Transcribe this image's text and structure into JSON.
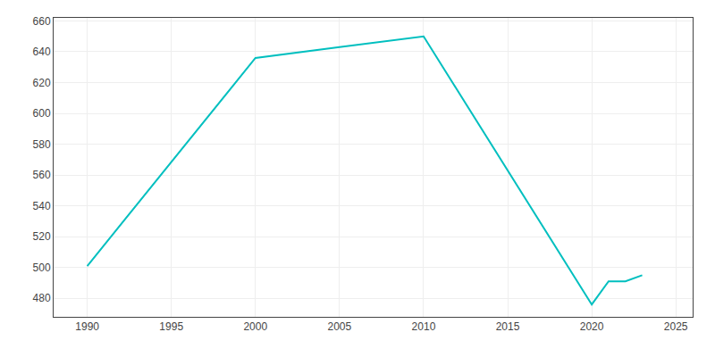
{
  "chart_data": {
    "type": "line",
    "x": [
      1990,
      2000,
      2005,
      2010,
      2020,
      2021,
      2022,
      2023
    ],
    "values": [
      501,
      636,
      643,
      650,
      476,
      491,
      491,
      495
    ],
    "color": "#00BFBF",
    "xlim": [
      1988,
      2026
    ],
    "ylim": [
      468,
      662
    ],
    "xticks": [
      1990,
      1995,
      2000,
      2005,
      2010,
      2015,
      2020,
      2025
    ],
    "yticks": [
      480,
      500,
      520,
      540,
      560,
      580,
      600,
      620,
      640,
      660
    ],
    "grid": true
  }
}
